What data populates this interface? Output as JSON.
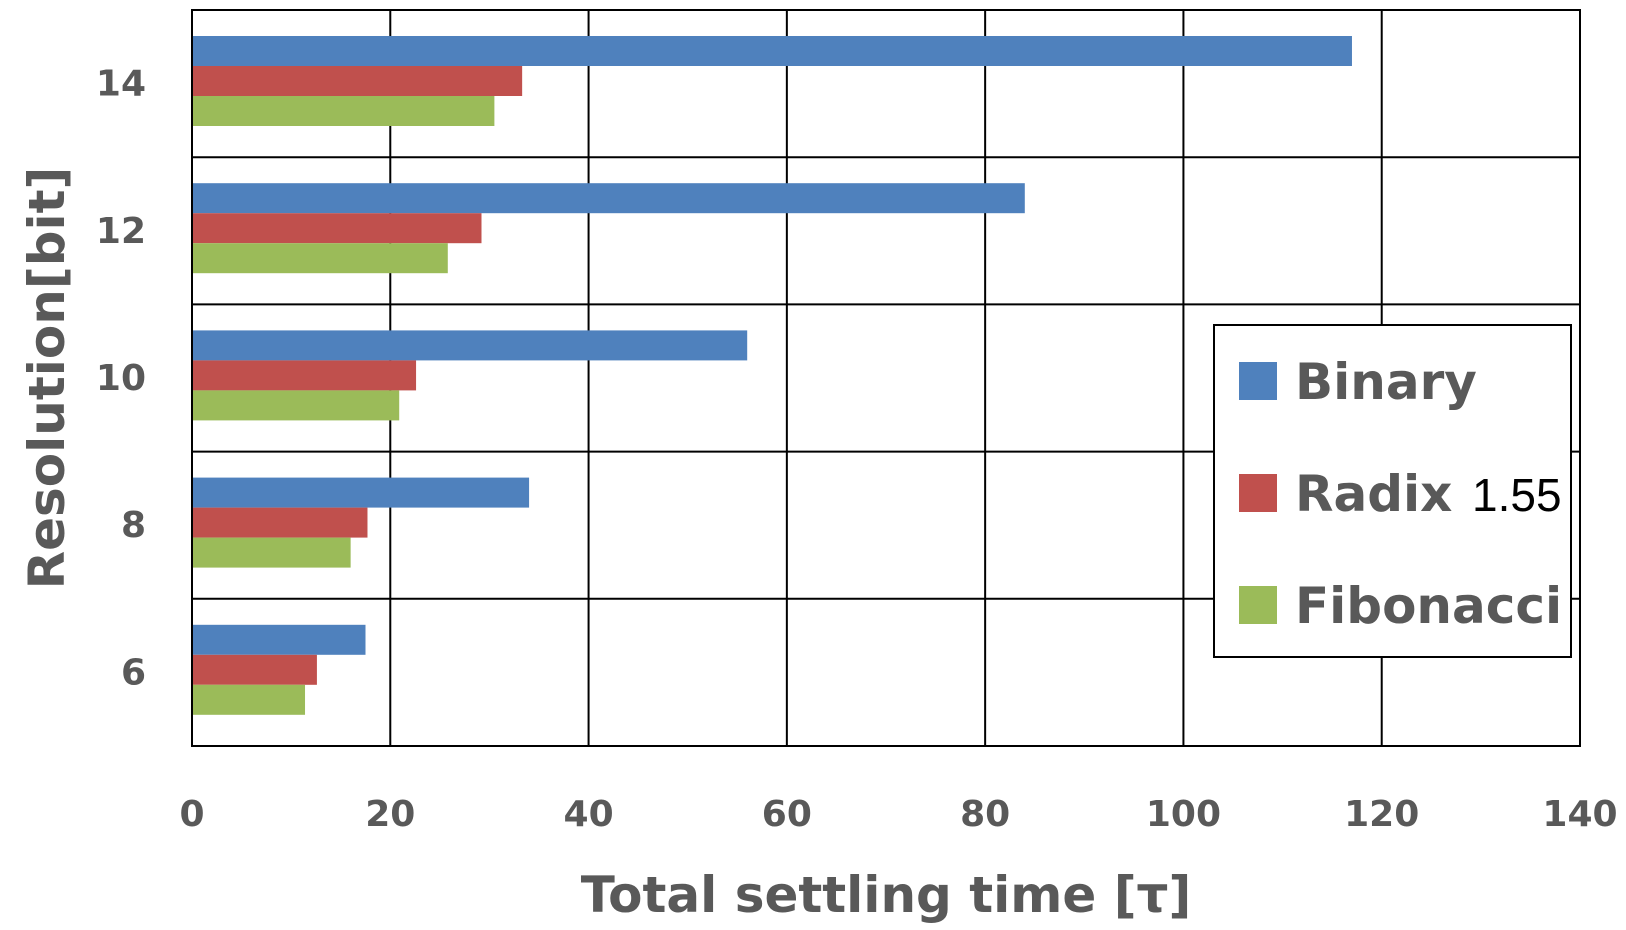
{
  "chart_data": {
    "type": "bar",
    "orientation": "horizontal",
    "xlabel": "Total settling time [τ]",
    "ylabel": "Resolution[bit]",
    "xlim": [
      0,
      140
    ],
    "xticks": [
      "0",
      "20",
      "40",
      "60",
      "80",
      "100",
      "120",
      "140"
    ],
    "categories": [
      "14",
      "12",
      "10",
      "8",
      "6"
    ],
    "series": [
      {
        "name": "Binary",
        "suffix": "",
        "color": "#4f81bd",
        "values": [
          117,
          84,
          56,
          34,
          17.5
        ]
      },
      {
        "name": "Radix",
        "suffix": "1.55",
        "color": "#c0504d",
        "values": [
          33.3,
          29.2,
          22.6,
          17.7,
          12.6
        ]
      },
      {
        "name": "Fibonacci",
        "suffix": "",
        "color": "#9bbb59",
        "values": [
          30.5,
          25.8,
          20.9,
          16.0,
          11.4
        ]
      }
    ],
    "grid": true,
    "legend_position": "right"
  }
}
